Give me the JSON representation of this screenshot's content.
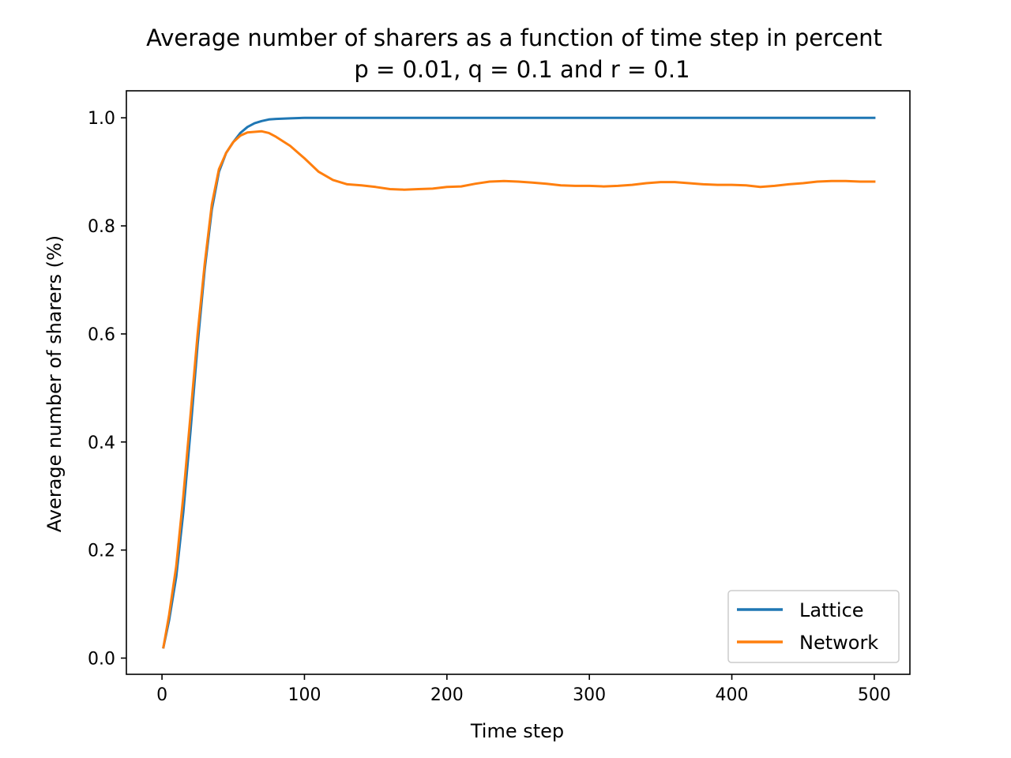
{
  "chart_data": {
    "type": "line",
    "title": "Average number of sharers as a function of time step in percent",
    "subtitle": "p = 0.01, q = 0.1 and r = 0.1",
    "xlabel": "Time step",
    "ylabel": "Average number of sharers (%)",
    "xlim": [
      -25,
      525
    ],
    "ylim": [
      -0.03,
      1.05
    ],
    "xticks": [
      0,
      100,
      200,
      300,
      400,
      500
    ],
    "xtick_labels": [
      "0",
      "100",
      "200",
      "300",
      "400",
      "500"
    ],
    "yticks": [
      0.0,
      0.2,
      0.4,
      0.6,
      0.8,
      1.0
    ],
    "ytick_labels": [
      "0.0",
      "0.2",
      "0.4",
      "0.6",
      "0.8",
      "1.0"
    ],
    "grid": false,
    "legend_position": "lower-right",
    "series": [
      {
        "name": "Lattice",
        "color": "#1f77b4",
        "x": [
          1,
          5,
          10,
          15,
          20,
          25,
          30,
          35,
          40,
          45,
          50,
          55,
          60,
          65,
          70,
          75,
          80,
          90,
          100,
          120,
          150,
          200,
          300,
          400,
          500
        ],
        "y": [
          0.02,
          0.07,
          0.15,
          0.27,
          0.42,
          0.58,
          0.72,
          0.83,
          0.9,
          0.935,
          0.955,
          0.972,
          0.983,
          0.99,
          0.994,
          0.997,
          0.998,
          0.999,
          1.0,
          1.0,
          1.0,
          1.0,
          1.0,
          1.0,
          1.0
        ]
      },
      {
        "name": "Network",
        "color": "#ff7f0e",
        "x": [
          1,
          5,
          10,
          15,
          20,
          25,
          30,
          35,
          40,
          45,
          50,
          55,
          60,
          65,
          70,
          75,
          80,
          90,
          100,
          110,
          120,
          130,
          140,
          150,
          160,
          170,
          180,
          190,
          200,
          210,
          220,
          230,
          240,
          250,
          260,
          270,
          280,
          290,
          300,
          310,
          320,
          330,
          340,
          350,
          360,
          370,
          380,
          390,
          400,
          410,
          420,
          430,
          440,
          450,
          460,
          470,
          480,
          490,
          500
        ],
        "y": [
          0.02,
          0.08,
          0.17,
          0.3,
          0.45,
          0.6,
          0.73,
          0.84,
          0.905,
          0.935,
          0.955,
          0.967,
          0.973,
          0.974,
          0.975,
          0.972,
          0.965,
          0.948,
          0.925,
          0.9,
          0.885,
          0.877,
          0.875,
          0.872,
          0.868,
          0.867,
          0.868,
          0.869,
          0.872,
          0.873,
          0.878,
          0.882,
          0.883,
          0.882,
          0.88,
          0.878,
          0.875,
          0.874,
          0.874,
          0.873,
          0.874,
          0.876,
          0.879,
          0.881,
          0.881,
          0.879,
          0.877,
          0.876,
          0.876,
          0.875,
          0.872,
          0.874,
          0.877,
          0.879,
          0.882,
          0.883,
          0.883,
          0.882,
          0.882
        ]
      }
    ]
  }
}
